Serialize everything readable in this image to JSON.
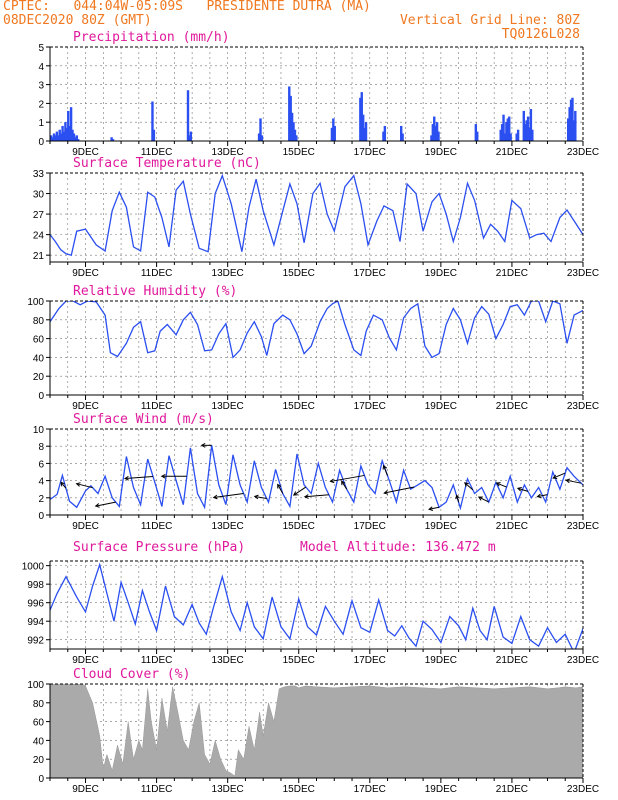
{
  "header": {
    "line1": "CPTEC:   044:04W-05:09S   PRESIDENTE DUTRA (MA)",
    "line2_left": "08DEC2020 80Z (GMT)",
    "line2_right": "Vertical Grid Line: 80Z",
    "line3_right": "TQ0126L028"
  },
  "colors": {
    "line": "#2b4ff0",
    "bar": "#2b4ff0",
    "cloud": "#aaaaaa",
    "title": "#e0189c",
    "header": "#f07820"
  },
  "x_tick_labels": [
    "9DEC",
    "11DEC",
    "13DEC",
    "15DEC",
    "17DEC",
    "19DEC",
    "21DEC",
    "23DEC"
  ],
  "chart_data": [
    {
      "type": "bar",
      "title": "Precipitation (mm/h)",
      "ylim": [
        0,
        5
      ],
      "yticks": [
        "0",
        "1",
        "2",
        "3",
        "4",
        "5"
      ],
      "x_range": [
        "08DEC2020",
        "23DEC2020"
      ],
      "events": [
        {
          "day": 8.0,
          "values": [
            0.3,
            0.2,
            0.4,
            0.3,
            0.5,
            0.3,
            0.6,
            0.4,
            0.8,
            0.5,
            1.0,
            0.7,
            1.6,
            0.8,
            1.8,
            0.6,
            0.4,
            0.2,
            0.3,
            0.1
          ]
        },
        {
          "day": 9.7,
          "values": [
            0.2,
            0.1
          ]
        },
        {
          "day": 10.85,
          "values": [
            2.1,
            0.6
          ]
        },
        {
          "day": 11.85,
          "values": [
            2.7,
            0.3,
            0.5
          ]
        },
        {
          "day": 13.85,
          "values": [
            0.4,
            1.2,
            0.3
          ]
        },
        {
          "day": 14.7,
          "values": [
            2.9,
            2.4,
            1.5,
            1.0,
            0.6,
            0.3
          ]
        },
        {
          "day": 15.9,
          "values": [
            0.7,
            1.2,
            0.8
          ]
        },
        {
          "day": 16.7,
          "values": [
            2.3,
            2.6,
            1.4,
            0.7,
            1.0
          ]
        },
        {
          "day": 17.35,
          "values": [
            0.5,
            0.8
          ]
        },
        {
          "day": 17.85,
          "values": [
            0.8,
            0.4
          ]
        },
        {
          "day": 18.7,
          "values": [
            0.3,
            0.9,
            1.3,
            0.8,
            1.0,
            0.5
          ]
        },
        {
          "day": 19.95,
          "values": [
            0.9,
            0.5
          ]
        },
        {
          "day": 20.65,
          "values": [
            0.6,
            0.9,
            1.4,
            0.4,
            1.0,
            1.2,
            1.3,
            0.4
          ]
        },
        {
          "day": 21.1,
          "values": [
            0.4,
            0.6
          ]
        },
        {
          "day": 21.3,
          "values": [
            1.6,
            0.9,
            1.1,
            1.3,
            0.7,
            1.7,
            0.6
          ]
        },
        {
          "day": 22.55,
          "values": [
            1.2,
            1.8,
            2.2,
            2.3,
            1.1,
            1.6
          ]
        }
      ]
    },
    {
      "type": "line",
      "title": "Surface Temperature (nC)",
      "ylim": [
        20,
        33
      ],
      "yticks": [
        "21",
        "24",
        "27",
        "30",
        "33"
      ],
      "x": [
        8.0,
        8.15,
        8.3,
        8.45,
        8.6,
        8.75,
        9.0,
        9.3,
        9.55,
        9.75,
        9.95,
        10.15,
        10.35,
        10.55,
        10.75,
        10.95,
        11.15,
        11.35,
        11.55,
        11.75,
        11.95,
        12.2,
        12.45,
        12.65,
        12.85,
        13.1,
        13.4,
        13.6,
        13.8,
        14.0,
        14.3,
        14.55,
        14.75,
        14.95,
        15.15,
        15.4,
        15.6,
        15.8,
        16.0,
        16.3,
        16.55,
        16.75,
        16.95,
        17.2,
        17.4,
        17.65,
        17.85,
        18.05,
        18.3,
        18.5,
        18.75,
        18.95,
        19.15,
        19.35,
        19.55,
        19.75,
        19.95,
        20.2,
        20.4,
        20.6,
        20.8,
        21.0,
        21.25,
        21.5,
        21.7,
        21.9,
        22.1,
        22.35,
        22.55,
        22.75,
        23.0
      ],
      "y": [
        24.0,
        23.0,
        21.8,
        21.2,
        21.0,
        24.5,
        24.8,
        22.5,
        21.6,
        27.5,
        30.2,
        28.0,
        22.2,
        21.6,
        30.2,
        29.5,
        26.5,
        22.2,
        30.5,
        31.8,
        27.0,
        22.0,
        21.5,
        30.0,
        32.6,
        28.5,
        21.5,
        28.0,
        32.1,
        27.5,
        22.5,
        27.4,
        31.4,
        28.5,
        22.8,
        30.0,
        31.5,
        27.0,
        24.5,
        31.0,
        32.6,
        28.5,
        22.5,
        26.0,
        28.2,
        27.5,
        23.0,
        31.4,
        30.0,
        24.5,
        28.8,
        30.0,
        27.0,
        23.0,
        26.5,
        31.5,
        29.0,
        23.5,
        25.5,
        24.5,
        23.0,
        29.0,
        27.8,
        23.5,
        24.0,
        24.2,
        23.0,
        26.5,
        27.6,
        26.0,
        24.0
      ]
    },
    {
      "type": "line",
      "title": "Relative Humidity (%)",
      "ylim": [
        0,
        100
      ],
      "yticks": [
        "0",
        "20",
        "40",
        "60",
        "80",
        "100"
      ],
      "x": [
        8.0,
        8.25,
        8.45,
        8.65,
        8.85,
        9.05,
        9.3,
        9.55,
        9.7,
        9.9,
        10.15,
        10.35,
        10.55,
        10.75,
        10.95,
        11.1,
        11.3,
        11.55,
        11.75,
        11.95,
        12.15,
        12.35,
        12.55,
        12.75,
        12.95,
        13.15,
        13.35,
        13.55,
        13.75,
        13.95,
        14.1,
        14.3,
        14.55,
        14.75,
        14.95,
        15.15,
        15.35,
        15.6,
        15.8,
        15.95,
        16.1,
        16.3,
        16.55,
        16.75,
        16.9,
        17.1,
        17.35,
        17.55,
        17.75,
        17.95,
        18.15,
        18.35,
        18.55,
        18.75,
        18.95,
        19.15,
        19.35,
        19.55,
        19.75,
        19.95,
        20.15,
        20.35,
        20.55,
        20.75,
        20.95,
        21.15,
        21.35,
        21.55,
        21.75,
        21.95,
        22.15,
        22.35,
        22.55,
        22.75,
        23.0
      ],
      "y": [
        78,
        92,
        100,
        100,
        96,
        100,
        99,
        85,
        45,
        41,
        55,
        72,
        78,
        45,
        47,
        68,
        75,
        64,
        80,
        88,
        75,
        47,
        48,
        65,
        76,
        40,
        48,
        66,
        78,
        62,
        42,
        76,
        85,
        80,
        65,
        44,
        52,
        78,
        92,
        97,
        100,
        75,
        48,
        42,
        68,
        85,
        80,
        61,
        48,
        82,
        92,
        97,
        52,
        40,
        44,
        75,
        92,
        80,
        55,
        82,
        94,
        86,
        60,
        75,
        94,
        96,
        85,
        100,
        100,
        78,
        100,
        97,
        55,
        85,
        90
      ]
    },
    {
      "type": "line",
      "title": "Surface Wind (m/s)",
      "ylim": [
        0,
        10
      ],
      "yticks": [
        "0",
        "2",
        "4",
        "6",
        "8",
        "10"
      ],
      "x": [
        8.0,
        8.2,
        8.35,
        8.55,
        8.75,
        9.0,
        9.15,
        9.35,
        9.55,
        9.75,
        9.95,
        10.15,
        10.35,
        10.55,
        10.75,
        10.95,
        11.15,
        11.35,
        11.55,
        11.75,
        11.95,
        12.15,
        12.35,
        12.55,
        12.75,
        12.95,
        13.15,
        13.35,
        13.55,
        13.75,
        13.95,
        14.15,
        14.35,
        14.55,
        14.75,
        14.95,
        15.15,
        15.35,
        15.55,
        15.75,
        15.95,
        16.15,
        16.35,
        16.55,
        16.75,
        16.95,
        17.15,
        17.35,
        17.55,
        17.75,
        17.95,
        18.15,
        18.35,
        18.55,
        18.75,
        18.95,
        19.15,
        19.35,
        19.55,
        19.75,
        19.95,
        20.15,
        20.35,
        20.55,
        20.75,
        20.95,
        21.15,
        21.35,
        21.55,
        21.75,
        21.95,
        22.15,
        22.35,
        22.55,
        22.75,
        23.0
      ],
      "y": [
        1.8,
        2.4,
        4.6,
        1.6,
        0.9,
        2.8,
        3.4,
        2.5,
        4.5,
        2.0,
        1.0,
        6.8,
        3.2,
        1.2,
        6.5,
        3.8,
        1.0,
        6.9,
        4.0,
        1.2,
        7.8,
        2.5,
        0.9,
        8.1,
        3.5,
        1.2,
        7.0,
        3.5,
        1.5,
        6.3,
        3.2,
        1.5,
        5.3,
        2.5,
        1.0,
        7.1,
        3.5,
        2.5,
        6.0,
        3.2,
        1.5,
        5.2,
        3.0,
        1.5,
        5.7,
        3.5,
        2.5,
        6.3,
        4.0,
        1.5,
        5.2,
        3.0,
        3.5,
        4.0,
        3.2,
        0.9,
        1.5,
        3.5,
        0.8,
        4.2,
        2.5,
        3.2,
        1.5,
        3.8,
        2.0,
        4.5,
        1.5,
        3.5,
        2.0,
        3.2,
        1.5,
        5.0,
        3.0,
        5.5,
        4.5,
        3.5
      ],
      "arrows": [
        {
          "day": 8.45,
          "dx": -5,
          "dy": -6
        },
        {
          "day": 9.2,
          "dx": -16,
          "dy": -4
        },
        {
          "day": 9.85,
          "dx": -20,
          "dy": 4
        },
        {
          "day": 10.9,
          "dx": -28,
          "dy": 2
        },
        {
          "day": 11.85,
          "dx": -25,
          "dy": 0
        },
        {
          "day": 12.55,
          "dx": -10,
          "dy": 0
        },
        {
          "day": 13.45,
          "dx": -30,
          "dy": 4
        },
        {
          "day": 14.1,
          "dx": -12,
          "dy": -2
        },
        {
          "day": 14.55,
          "dx": -5,
          "dy": -9
        },
        {
          "day": 15.2,
          "dx": -12,
          "dy": 8
        },
        {
          "day": 15.85,
          "dx": -24,
          "dy": 2
        },
        {
          "day": 16.35,
          "dx": -5,
          "dy": -8
        },
        {
          "day": 16.85,
          "dx": -34,
          "dy": 6
        },
        {
          "day": 17.5,
          "dx": -4,
          "dy": -10
        },
        {
          "day": 18.25,
          "dx": -30,
          "dy": 6
        },
        {
          "day": 18.95,
          "dx": -10,
          "dy": 2
        },
        {
          "day": 19.5,
          "dx": -2,
          "dy": -7
        },
        {
          "day": 19.9,
          "dx": -8,
          "dy": -7
        },
        {
          "day": 20.35,
          "dx": -10,
          "dy": -5
        },
        {
          "day": 20.85,
          "dx": -10,
          "dy": -4
        },
        {
          "day": 21.45,
          "dx": -10,
          "dy": -3
        },
        {
          "day": 22.0,
          "dx": -10,
          "dy": 2
        },
        {
          "day": 22.5,
          "dx": -12,
          "dy": 5
        },
        {
          "day": 22.95,
          "dx": -15,
          "dy": -3
        }
      ]
    },
    {
      "type": "line",
      "title": "Surface Pressure (hPa)",
      "subtitle": "Model Altitude: 136.472 m",
      "ylim": [
        991,
        1000.5
      ],
      "yticks": [
        "992",
        "994",
        "996",
        "998",
        "1000"
      ],
      "x": [
        8.0,
        8.2,
        8.45,
        8.75,
        9.0,
        9.2,
        9.4,
        9.6,
        9.8,
        10.0,
        10.2,
        10.4,
        10.6,
        10.8,
        11.0,
        11.25,
        11.5,
        11.75,
        12.0,
        12.2,
        12.4,
        12.6,
        12.85,
        13.1,
        13.35,
        13.55,
        13.75,
        14.0,
        14.25,
        14.5,
        14.75,
        15.0,
        15.25,
        15.5,
        15.75,
        16.0,
        16.25,
        16.5,
        16.75,
        17.0,
        17.25,
        17.5,
        17.7,
        17.9,
        18.1,
        18.3,
        18.5,
        18.75,
        19.0,
        19.25,
        19.5,
        19.7,
        19.9,
        20.1,
        20.3,
        20.5,
        20.75,
        21.0,
        21.25,
        21.5,
        21.75,
        22.0,
        22.25,
        22.5,
        22.75,
        23.0
      ],
      "y": [
        995.2,
        997.0,
        998.8,
        996.6,
        995.0,
        997.8,
        1000.1,
        997.0,
        994.0,
        998.2,
        996.0,
        993.7,
        997.3,
        995.0,
        993.0,
        997.8,
        994.5,
        993.6,
        995.8,
        993.8,
        992.6,
        995.5,
        998.8,
        995.0,
        993.0,
        996.0,
        993.4,
        992.1,
        996.6,
        993.4,
        992.1,
        996.4,
        993.4,
        992.5,
        995.6,
        994.0,
        992.6,
        996.2,
        993.3,
        992.8,
        996.3,
        993.0,
        992.4,
        993.5,
        992.2,
        991.3,
        994.0,
        993.1,
        991.7,
        994.5,
        993.5,
        992.0,
        995.4,
        993.0,
        992.0,
        995.6,
        992.3,
        991.6,
        994.5,
        992.0,
        991.3,
        993.3,
        991.7,
        992.6,
        990.6,
        993.2
      ]
    },
    {
      "type": "area",
      "title": "Cloud Cover (%)",
      "ylim": [
        0,
        100
      ],
      "yticks": [
        "0",
        "20",
        "40",
        "60",
        "80",
        "100"
      ],
      "x": [
        8.0,
        8.9,
        9.0,
        9.2,
        9.4,
        9.5,
        9.6,
        9.75,
        9.9,
        10.05,
        10.2,
        10.35,
        10.5,
        10.6,
        10.75,
        10.85,
        11.0,
        11.15,
        11.3,
        11.45,
        11.6,
        11.75,
        11.9,
        12.05,
        12.2,
        12.35,
        12.5,
        12.65,
        12.8,
        12.95,
        13.1,
        13.2,
        13.3,
        13.45,
        13.6,
        13.75,
        13.9,
        14.0,
        14.15,
        14.3,
        14.45,
        14.6,
        14.75,
        14.9,
        15.0,
        15.2,
        15.5,
        16.0,
        16.5,
        17.0,
        17.5,
        18.0,
        18.5,
        19.0,
        19.5,
        20.0,
        20.5,
        21.0,
        21.5,
        22.0,
        22.3,
        22.5,
        22.8,
        23.0
      ],
      "y": [
        100,
        100,
        98,
        80,
        45,
        10,
        25,
        8,
        35,
        15,
        60,
        20,
        40,
        30,
        95,
        60,
        30,
        85,
        50,
        97,
        70,
        40,
        30,
        60,
        80,
        25,
        15,
        40,
        20,
        8,
        5,
        2,
        30,
        20,
        55,
        30,
        70,
        45,
        80,
        60,
        95,
        97,
        98,
        98,
        96,
        98,
        97,
        96,
        97,
        98,
        96,
        97,
        96,
        95,
        97,
        96,
        95,
        96,
        97,
        95,
        96,
        97,
        96,
        97
      ]
    }
  ]
}
